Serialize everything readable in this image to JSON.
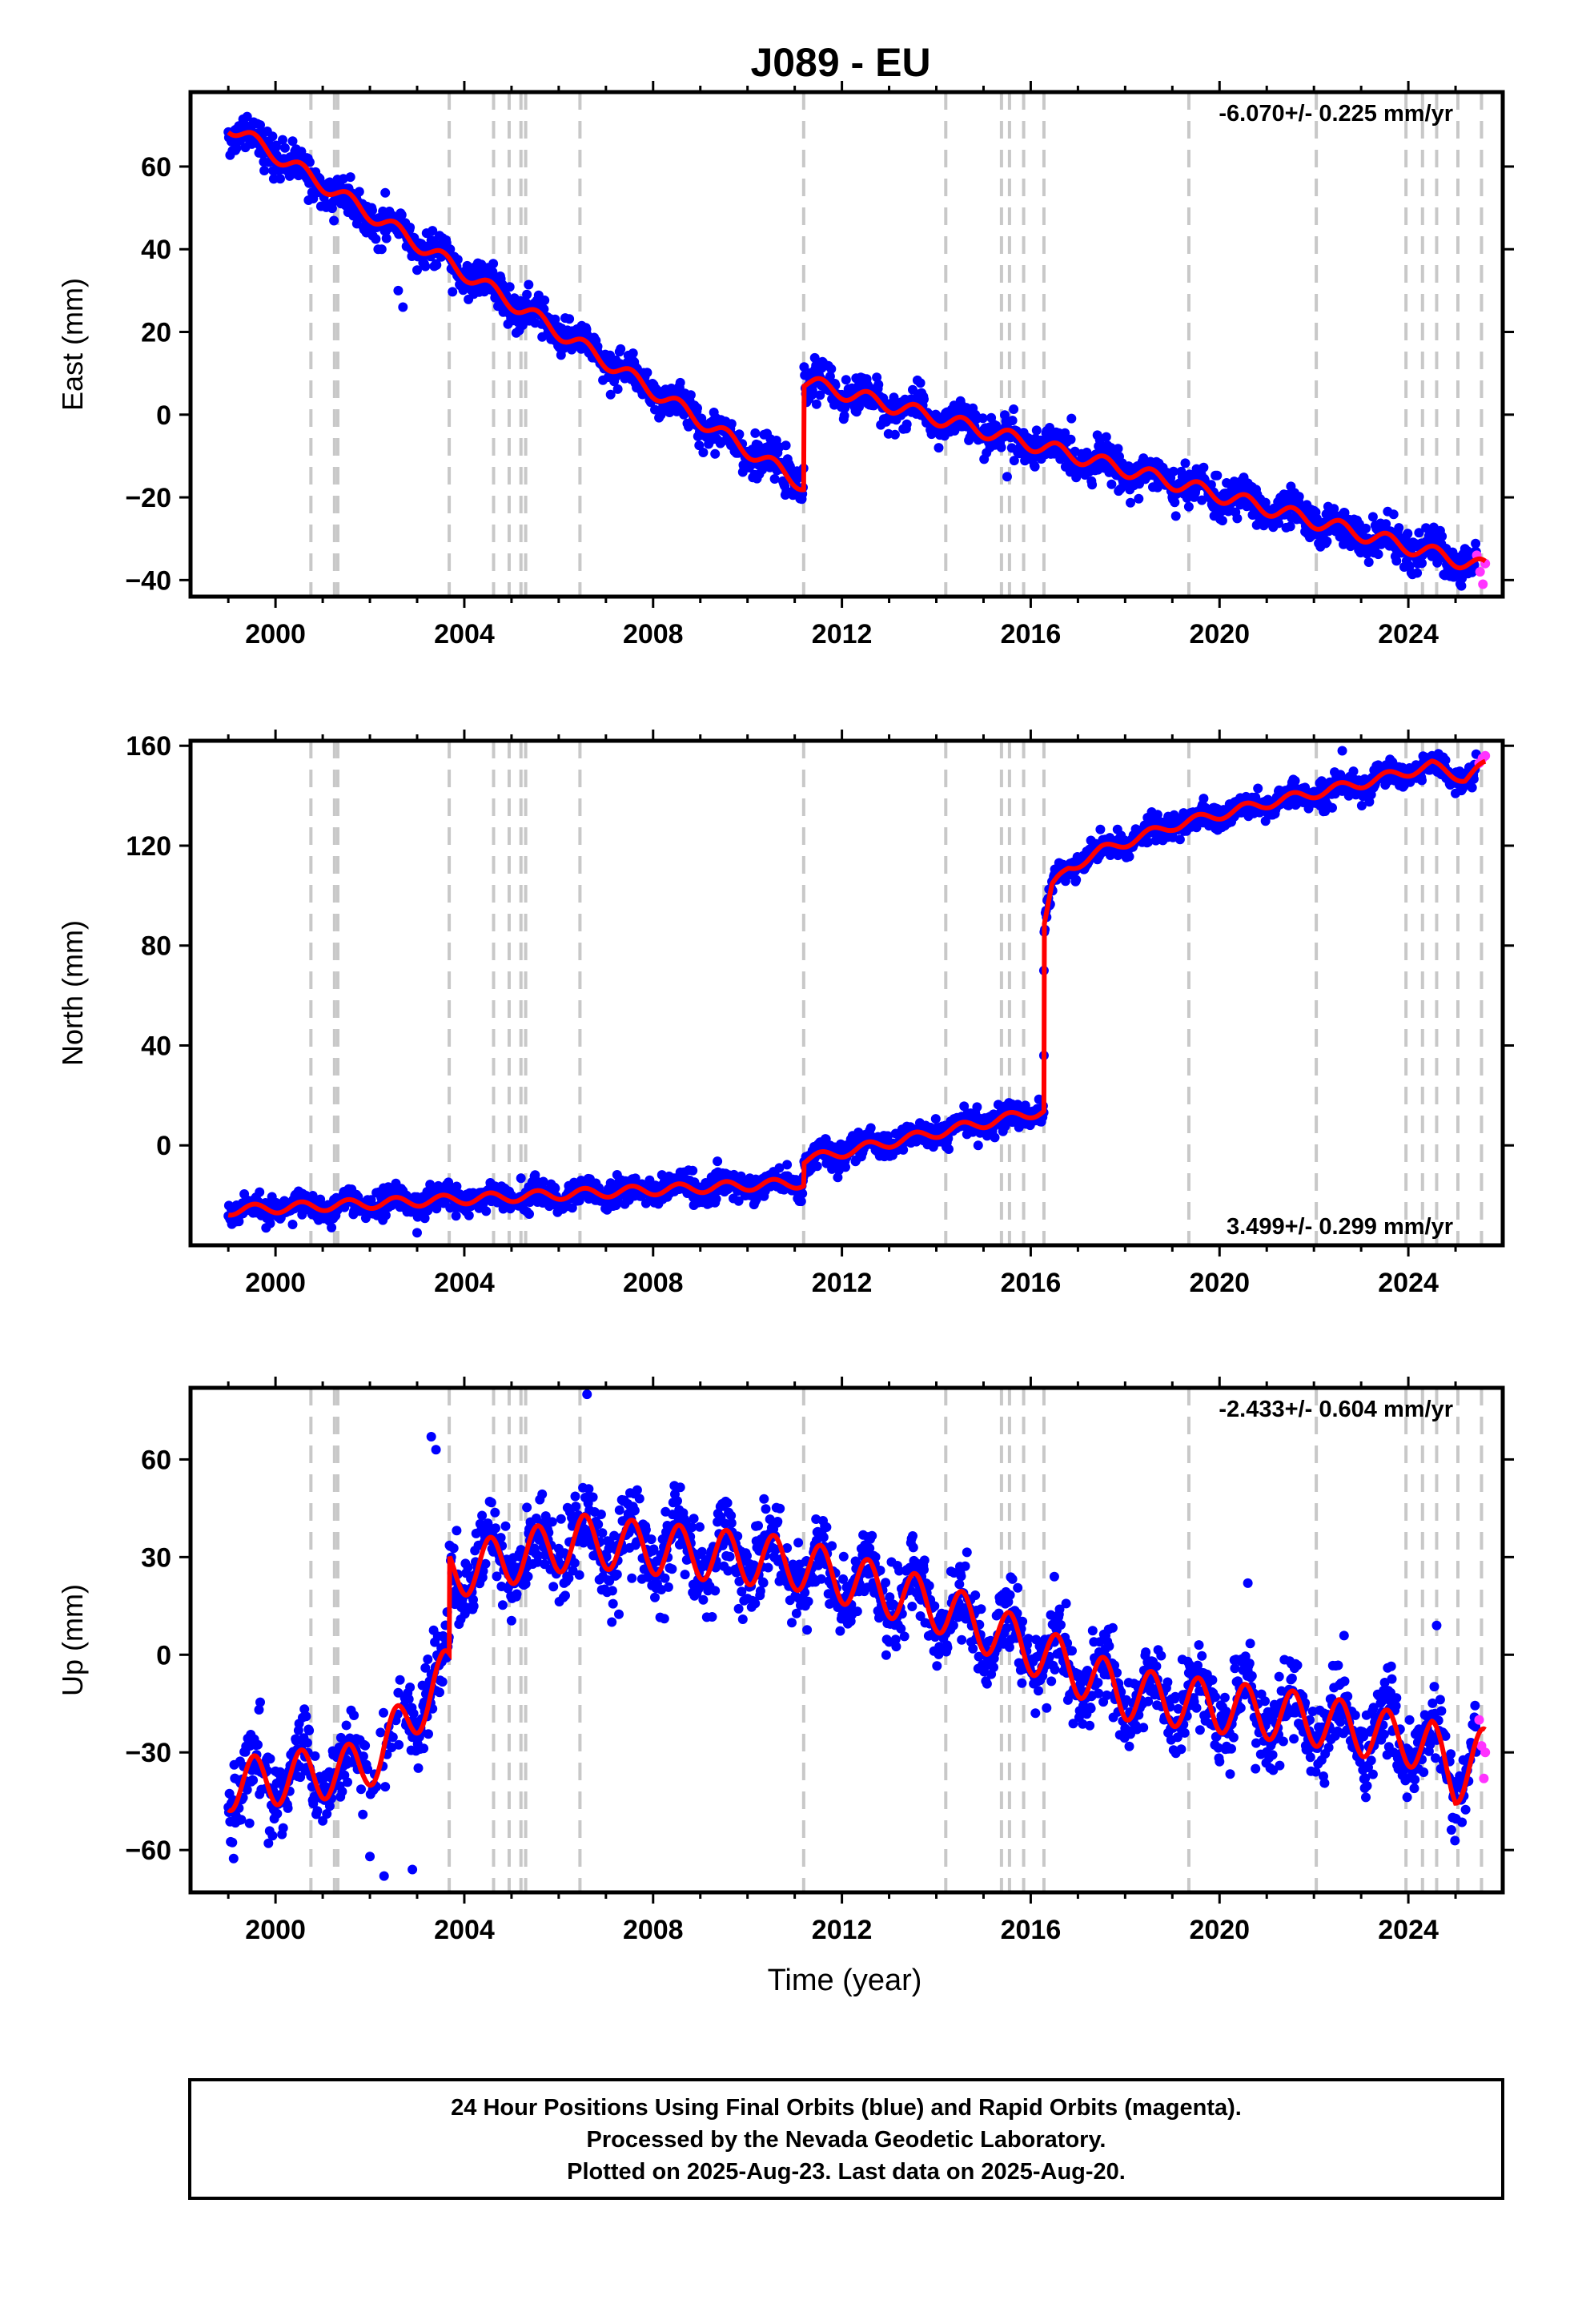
{
  "title": "J089 - EU",
  "xlabel": "Time (year)",
  "footer_lines": [
    "24 Hour Positions Using Final Orbits (blue) and Rapid Orbits (magenta).",
    "Processed by the Nevada Geodetic Laboratory.",
    "Plotted on 2025-Aug-23. Last data on 2025-Aug-20."
  ],
  "colors": {
    "final_orbit_points": "#0000ff",
    "rapid_orbit_points": "#ff33ff",
    "model_fit": "#ff0000",
    "event_lines": "#c8c8c8",
    "frame": "#000000"
  },
  "chart_data": [
    {
      "type": "scatter",
      "component": "east",
      "ylabel": "East (mm)",
      "rate_text": "-6.070+/- 0.225 mm/yr",
      "rate_position": "top-right",
      "xlim": [
        1998.2,
        2026.0
      ],
      "ylim": [
        -44,
        78
      ],
      "xticks": [
        2000,
        2004,
        2008,
        2012,
        2016,
        2020,
        2024
      ],
      "yticks": [
        -40,
        -20,
        0,
        20,
        40,
        60
      ],
      "grid": false,
      "event_lines_x": [
        2000.75,
        2001.25,
        2001.32,
        2003.68,
        2004.62,
        2004.95,
        2005.2,
        2005.3,
        2006.45,
        2011.19,
        2014.2,
        2015.38,
        2015.55,
        2015.85,
        2016.28,
        2019.35,
        2022.05,
        2023.95,
        2024.3,
        2024.6,
        2025.05,
        2025.55
      ],
      "rapid_points": {
        "x": [
          2025.45,
          2025.52,
          2025.58,
          2025.63
        ],
        "y": [
          -34,
          -38,
          -41,
          -36
        ]
      },
      "trend": {
        "x": [
          1999.0,
          2011.19,
          2011.19,
          2025.63
        ],
        "y": [
          70,
          -17,
          8,
          -37
        ]
      },
      "offsets": [],
      "seasonal_amplitude": 1.8,
      "noise": 2.2,
      "outliers": {
        "x": [
          2002.6,
          2002.7,
          2015.5
        ],
        "y": [
          30,
          26,
          -15
        ]
      }
    },
    {
      "type": "scatter",
      "component": "north",
      "ylabel": "North (mm)",
      "rate_text": "3.499+/- 0.299 mm/yr",
      "rate_position": "bottom-right",
      "xlim": [
        1998.2,
        2026.0
      ],
      "ylim": [
        -40,
        162
      ],
      "xticks": [
        2000,
        2004,
        2008,
        2012,
        2016,
        2020,
        2024
      ],
      "yticks": [
        0,
        40,
        80,
        120,
        160
      ],
      "grid": false,
      "event_lines_x": [
        2000.75,
        2001.25,
        2001.32,
        2003.68,
        2004.62,
        2004.95,
        2005.2,
        2005.3,
        2006.45,
        2011.19,
        2014.2,
        2015.38,
        2015.55,
        2015.85,
        2016.28,
        2019.35,
        2022.05,
        2023.95,
        2024.3,
        2024.6,
        2025.05,
        2025.55
      ],
      "rapid_points": {
        "x": [
          2025.5,
          2025.57,
          2025.63
        ],
        "y": [
          153,
          155,
          156
        ]
      },
      "trend": {
        "x": [
          1999.0,
          2011.19,
          2011.19,
          2016.28,
          2016.28,
          2016.45,
          2016.8,
          2017.5,
          2019.0,
          2021.0,
          2023.0,
          2024.5,
          2025.2,
          2025.63
        ],
        "y": [
          -26,
          -15,
          -6,
          14,
          88,
          103,
          111,
          118,
          128,
          137,
          145,
          152,
          147,
          152
        ]
      },
      "offsets": [],
      "seasonal_amplitude": 2.0,
      "noise": 2.5,
      "outliers": {
        "x": [
          2003.0,
          2016.28,
          2016.28,
          2022.6
        ],
        "y": [
          -35,
          36,
          70,
          158
        ]
      }
    },
    {
      "type": "scatter",
      "component": "up",
      "ylabel": "Up (mm)",
      "rate_text": "-2.433+/- 0.604 mm/yr",
      "rate_position": "top-right",
      "xlim": [
        1998.2,
        2026.0
      ],
      "ylim": [
        -73,
        82
      ],
      "xticks": [
        2000,
        2004,
        2008,
        2012,
        2016,
        2020,
        2024
      ],
      "yticks": [
        -60,
        -30,
        0,
        30,
        60
      ],
      "grid": false,
      "event_lines_x": [
        2000.75,
        2001.25,
        2001.32,
        2003.68,
        2004.62,
        2004.95,
        2005.2,
        2005.3,
        2006.45,
        2011.19,
        2014.2,
        2015.38,
        2015.55,
        2015.85,
        2016.28,
        2019.35,
        2022.05,
        2023.95,
        2024.3,
        2024.6,
        2025.05,
        2025.55
      ],
      "rapid_points": {
        "x": [
          2025.5,
          2025.55,
          2025.6,
          2025.63
        ],
        "y": [
          -20,
          -28,
          -38,
          -30
        ]
      },
      "trend": {
        "x": [
          1999.0,
          2001.8,
          2002.2,
          2003.68,
          2003.68,
          2006.5,
          2011.0,
          2014.0,
          2016.0,
          2018.0,
          2022.0,
          2024.5,
          2025.0,
          2025.63
        ],
        "y": [
          -40,
          -35,
          -30,
          -5,
          25,
          35,
          28,
          15,
          2,
          -12,
          -20,
          -28,
          -38,
          -30
        ]
      },
      "offsets": [],
      "seasonal_amplitude": 8,
      "noise": 6,
      "gap": [
        2001.75,
        2002.75
      ],
      "outliers": {
        "x": [
          2002.0,
          2002.3,
          2002.9,
          2003.3,
          2003.4,
          2006.6,
          2016.5,
          2020.6,
          2024.6
        ],
        "y": [
          -62,
          -68,
          -66,
          67,
          63,
          80,
          24,
          22,
          9
        ]
      }
    }
  ]
}
